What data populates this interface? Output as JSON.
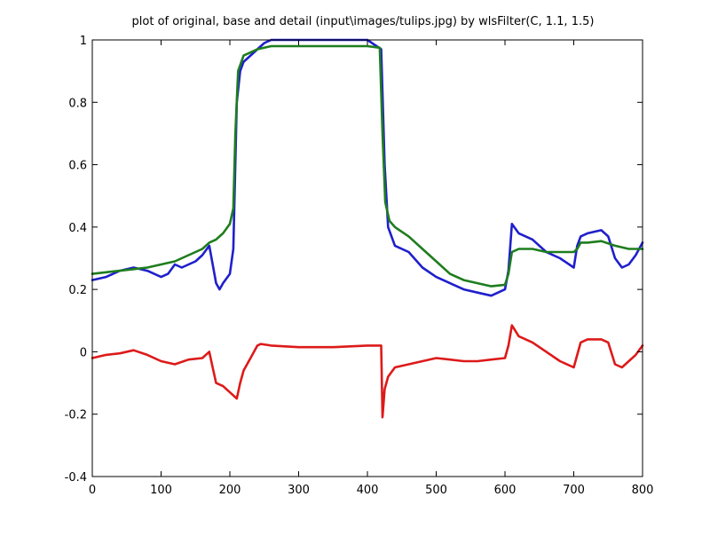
{
  "chart_data": {
    "type": "line",
    "title": "plot of original, base and detail (input\\images/tulips.jpg) by wlsFilter(C, 1.1, 1.5)",
    "xlabel": "",
    "ylabel": "",
    "xlim": [
      0,
      800
    ],
    "ylim": [
      -0.4,
      1
    ],
    "xticks": [
      0,
      100,
      200,
      300,
      400,
      500,
      600,
      700,
      800
    ],
    "yticks": [
      -0.4,
      -0.2,
      0,
      0.2,
      0.4,
      0.6,
      0.8,
      1
    ],
    "xtick_labels": [
      "0",
      "100",
      "200",
      "300",
      "400",
      "500",
      "600",
      "700",
      "800"
    ],
    "ytick_labels": [
      "-0.4",
      "-0.2",
      "0",
      "0.2",
      "0.4",
      "0.6",
      "0.8",
      "1"
    ],
    "grid": false,
    "colors": {
      "original": "#1f1fcc",
      "base": "#1e7d1e",
      "detail": "#dd1a1a",
      "axes": "#000000"
    },
    "series": [
      {
        "key": "original",
        "x": [
          0,
          20,
          40,
          60,
          80,
          100,
          110,
          120,
          130,
          140,
          150,
          160,
          170,
          180,
          185,
          190,
          200,
          205,
          210,
          215,
          220,
          230,
          240,
          250,
          260,
          280,
          300,
          350,
          400,
          420,
          425,
          430,
          440,
          460,
          480,
          500,
          520,
          540,
          560,
          580,
          600,
          605,
          610,
          620,
          640,
          660,
          680,
          700,
          705,
          710,
          720,
          740,
          750,
          760,
          770,
          780,
          790,
          800
        ],
        "y": [
          0.23,
          0.24,
          0.26,
          0.27,
          0.26,
          0.24,
          0.25,
          0.28,
          0.27,
          0.28,
          0.29,
          0.31,
          0.34,
          0.22,
          0.2,
          0.22,
          0.25,
          0.33,
          0.8,
          0.9,
          0.93,
          0.95,
          0.97,
          0.99,
          1.0,
          1.0,
          1.0,
          1.0,
          1.0,
          0.97,
          0.6,
          0.4,
          0.34,
          0.32,
          0.27,
          0.24,
          0.22,
          0.2,
          0.19,
          0.18,
          0.2,
          0.26,
          0.41,
          0.38,
          0.36,
          0.32,
          0.3,
          0.27,
          0.34,
          0.37,
          0.38,
          0.39,
          0.37,
          0.3,
          0.27,
          0.28,
          0.31,
          0.35
        ]
      },
      {
        "key": "base",
        "x": [
          0,
          20,
          40,
          60,
          80,
          100,
          120,
          140,
          160,
          170,
          180,
          190,
          200,
          205,
          208,
          212,
          220,
          230,
          240,
          260,
          300,
          350,
          400,
          418,
          422,
          426,
          432,
          440,
          460,
          480,
          500,
          520,
          540,
          560,
          580,
          600,
          605,
          610,
          620,
          640,
          660,
          680,
          700,
          705,
          710,
          720,
          740,
          760,
          780,
          800
        ],
        "y": [
          0.25,
          0.255,
          0.26,
          0.265,
          0.27,
          0.28,
          0.29,
          0.31,
          0.33,
          0.35,
          0.36,
          0.38,
          0.41,
          0.46,
          0.7,
          0.9,
          0.95,
          0.96,
          0.97,
          0.98,
          0.98,
          0.98,
          0.98,
          0.975,
          0.7,
          0.48,
          0.42,
          0.4,
          0.37,
          0.33,
          0.29,
          0.25,
          0.23,
          0.22,
          0.21,
          0.215,
          0.25,
          0.32,
          0.33,
          0.33,
          0.32,
          0.32,
          0.32,
          0.33,
          0.35,
          0.35,
          0.355,
          0.34,
          0.33,
          0.33
        ]
      },
      {
        "key": "detail",
        "x": [
          0,
          20,
          40,
          60,
          80,
          100,
          120,
          140,
          160,
          170,
          175,
          180,
          190,
          200,
          210,
          215,
          220,
          230,
          240,
          245,
          260,
          300,
          350,
          400,
          420,
          422,
          425,
          430,
          440,
          460,
          480,
          500,
          520,
          540,
          560,
          580,
          600,
          605,
          610,
          620,
          640,
          660,
          680,
          700,
          705,
          710,
          720,
          740,
          750,
          760,
          770,
          780,
          790,
          800
        ],
        "y": [
          -0.02,
          -0.01,
          -0.005,
          0.005,
          -0.01,
          -0.03,
          -0.04,
          -0.025,
          -0.02,
          0.0,
          -0.05,
          -0.1,
          -0.11,
          -0.13,
          -0.15,
          -0.1,
          -0.06,
          -0.02,
          0.02,
          0.025,
          0.02,
          0.015,
          0.015,
          0.02,
          0.02,
          -0.21,
          -0.12,
          -0.08,
          -0.05,
          -0.04,
          -0.03,
          -0.02,
          -0.025,
          -0.03,
          -0.03,
          -0.025,
          -0.02,
          0.02,
          0.085,
          0.05,
          0.03,
          0.0,
          -0.03,
          -0.05,
          -0.01,
          0.03,
          0.04,
          0.04,
          0.03,
          -0.04,
          -0.05,
          -0.03,
          -0.01,
          0.02
        ]
      }
    ]
  }
}
